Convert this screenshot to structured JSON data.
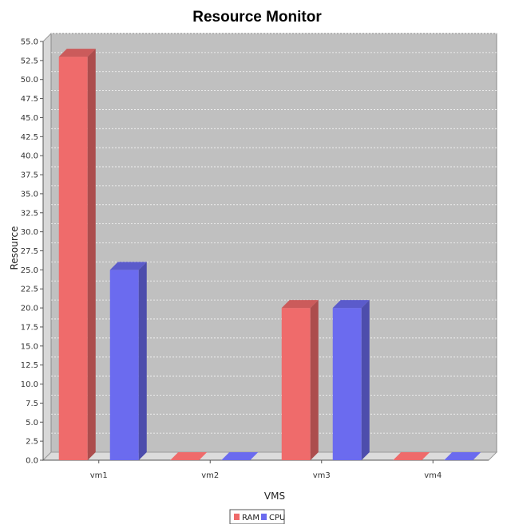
{
  "chart_data": {
    "type": "bar",
    "title": "Resource Monitor",
    "xlabel": "VMS",
    "ylabel": "Resource",
    "categories": [
      "vm1",
      "vm2",
      "vm3",
      "vm4"
    ],
    "series": [
      {
        "name": "RAM",
        "color": "#ef6b6b",
        "values": [
          53,
          0,
          20,
          0
        ]
      },
      {
        "name": "CPU",
        "color": "#6b6bef",
        "values": [
          25,
          0,
          20,
          0
        ]
      }
    ],
    "ylim": [
      0,
      55
    ],
    "ytick_step": 2.5,
    "yticks": [
      "0.0",
      "2.5",
      "5.0",
      "7.5",
      "10.0",
      "12.5",
      "15.0",
      "17.5",
      "20.0",
      "22.5",
      "25.0",
      "27.5",
      "30.0",
      "32.5",
      "35.0",
      "37.5",
      "40.0",
      "42.5",
      "45.0",
      "47.5",
      "50.0",
      "52.5",
      "55.0"
    ],
    "grid": true,
    "legend_position": "bottom-center",
    "style": "3d"
  }
}
